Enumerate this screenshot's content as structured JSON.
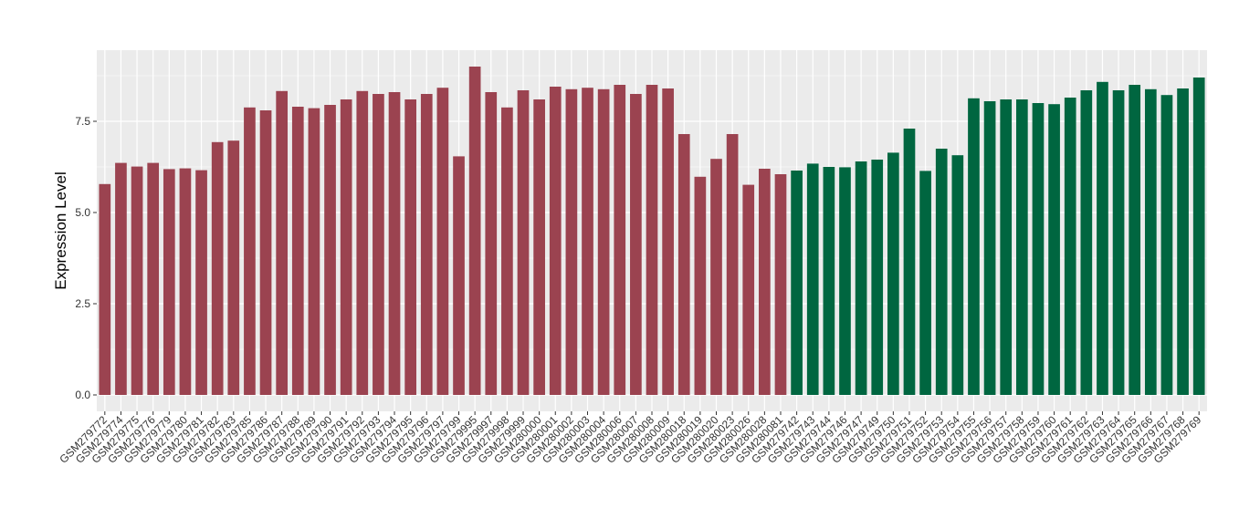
{
  "chart_data": {
    "type": "bar",
    "title": "",
    "xlabel": "",
    "ylabel": "Expression Level",
    "ylim": [
      -0.45,
      9.45
    ],
    "yticks": [
      0.0,
      2.5,
      5.0,
      7.5
    ],
    "ytick_labels": [
      "0.0",
      "2.5",
      "5.0",
      "7.5"
    ],
    "grid": true,
    "legend": "none",
    "background": "#EBEBEB",
    "gridline_color": "#FFFFFF",
    "categories": [
      "GSM279772",
      "GSM279774",
      "GSM279775",
      "GSM279776",
      "GSM279779",
      "GSM279780",
      "GSM279781",
      "GSM279782",
      "GSM279783",
      "GSM279785",
      "GSM279786",
      "GSM279787",
      "GSM279788",
      "GSM279789",
      "GSM279790",
      "GSM279791",
      "GSM279792",
      "GSM279793",
      "GSM279794",
      "GSM279795",
      "GSM279796",
      "GSM279797",
      "GSM279799",
      "GSM279995",
      "GSM279997",
      "GSM279998",
      "GSM279999",
      "GSM280000",
      "GSM280001",
      "GSM280002",
      "GSM280003",
      "GSM280004",
      "GSM280006",
      "GSM280007",
      "GSM280008",
      "GSM280009",
      "GSM280018",
      "GSM280019",
      "GSM280020",
      "GSM280023",
      "GSM280026",
      "GSM280028",
      "GSM280081",
      "GSM279742",
      "GSM279743",
      "GSM279744",
      "GSM279746",
      "GSM279747",
      "GSM279749",
      "GSM279750",
      "GSM279751",
      "GSM279752",
      "GSM279753",
      "GSM279754",
      "GSM279755",
      "GSM279756",
      "GSM279757",
      "GSM279758",
      "GSM279759",
      "GSM279760",
      "GSM279761",
      "GSM279762",
      "GSM279763",
      "GSM279764",
      "GSM279765",
      "GSM279766",
      "GSM279767",
      "GSM279768",
      "GSM279769"
    ],
    "values": [
      5.78,
      6.36,
      6.26,
      6.36,
      6.19,
      6.21,
      6.16,
      6.93,
      6.97,
      7.88,
      7.8,
      8.33,
      7.9,
      7.86,
      7.95,
      8.1,
      8.33,
      8.25,
      8.3,
      8.1,
      8.25,
      8.42,
      6.54,
      9.0,
      8.3,
      7.88,
      8.35,
      8.1,
      8.45,
      8.38,
      8.42,
      8.38,
      8.5,
      8.25,
      8.5,
      8.4,
      7.15,
      5.98,
      6.47,
      7.15,
      5.76,
      6.2,
      6.05,
      6.15,
      6.34,
      6.25,
      6.24,
      6.4,
      6.45,
      6.64,
      7.3,
      6.14,
      6.75,
      6.57,
      8.13,
      8.05,
      8.1,
      8.1,
      8.0,
      7.97,
      8.15,
      8.35,
      8.58,
      8.35,
      8.5,
      8.38,
      8.22,
      8.4,
      8.7
    ],
    "series": [
      {
        "color": "#9B4350",
        "start_index": 0,
        "end_index": 42
      },
      {
        "color": "#006640",
        "start_index": 43,
        "end_index": 68
      }
    ]
  }
}
